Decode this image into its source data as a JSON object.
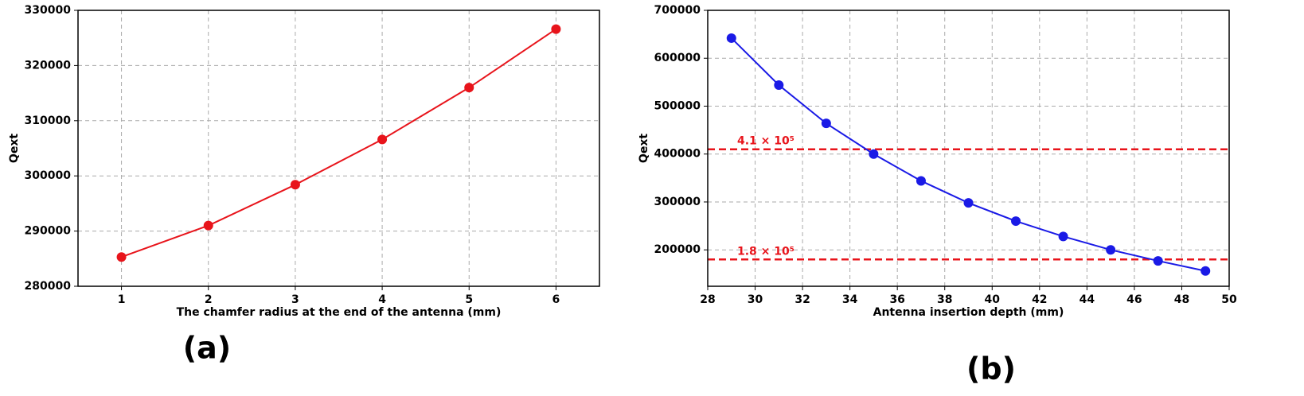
{
  "chart_data": [
    {
      "type": "line",
      "title": "(a)",
      "xlabel": "The chamfer radius at the end of the antenna (mm)",
      "ylabel": "Qext",
      "x": [
        1,
        2,
        3,
        4,
        5,
        6
      ],
      "series": [
        {
          "color": "#e8141b",
          "values": [
            285300,
            291000,
            298400,
            306600,
            316000,
            326600
          ]
        }
      ],
      "xlim": [
        0.5,
        6.5
      ],
      "xticks": [
        1,
        2,
        3,
        4,
        5,
        6
      ],
      "ylim": [
        280000,
        330000
      ],
      "yticks": [
        280000,
        290000,
        300000,
        310000,
        320000,
        330000
      ],
      "grid": true
    },
    {
      "type": "line",
      "title": "(b)",
      "xlabel": "Antenna insertion depth (mm)",
      "ylabel": "Qext",
      "x": [
        29,
        31,
        33,
        35,
        37,
        39,
        41,
        43,
        45,
        47,
        49
      ],
      "series": [
        {
          "color": "#1a1ae6",
          "values": [
            642000,
            544000,
            464000,
            400000,
            344000,
            298000,
            260000,
            228000,
            200000,
            177000,
            156000
          ]
        }
      ],
      "hlines": [
        {
          "value": 410000,
          "label": "4.1 × 10⁵",
          "color": "#e8141b"
        },
        {
          "value": 180000,
          "label": "1.8 × 10⁵",
          "color": "#e8141b"
        }
      ],
      "xlim": [
        28,
        50
      ],
      "xticks": [
        28,
        30,
        32,
        34,
        36,
        38,
        40,
        42,
        44,
        46,
        48,
        50
      ],
      "ylim": [
        124000,
        700000
      ],
      "yticks": [
        200000,
        300000,
        400000,
        500000,
        600000,
        700000
      ],
      "grid": true
    }
  ]
}
